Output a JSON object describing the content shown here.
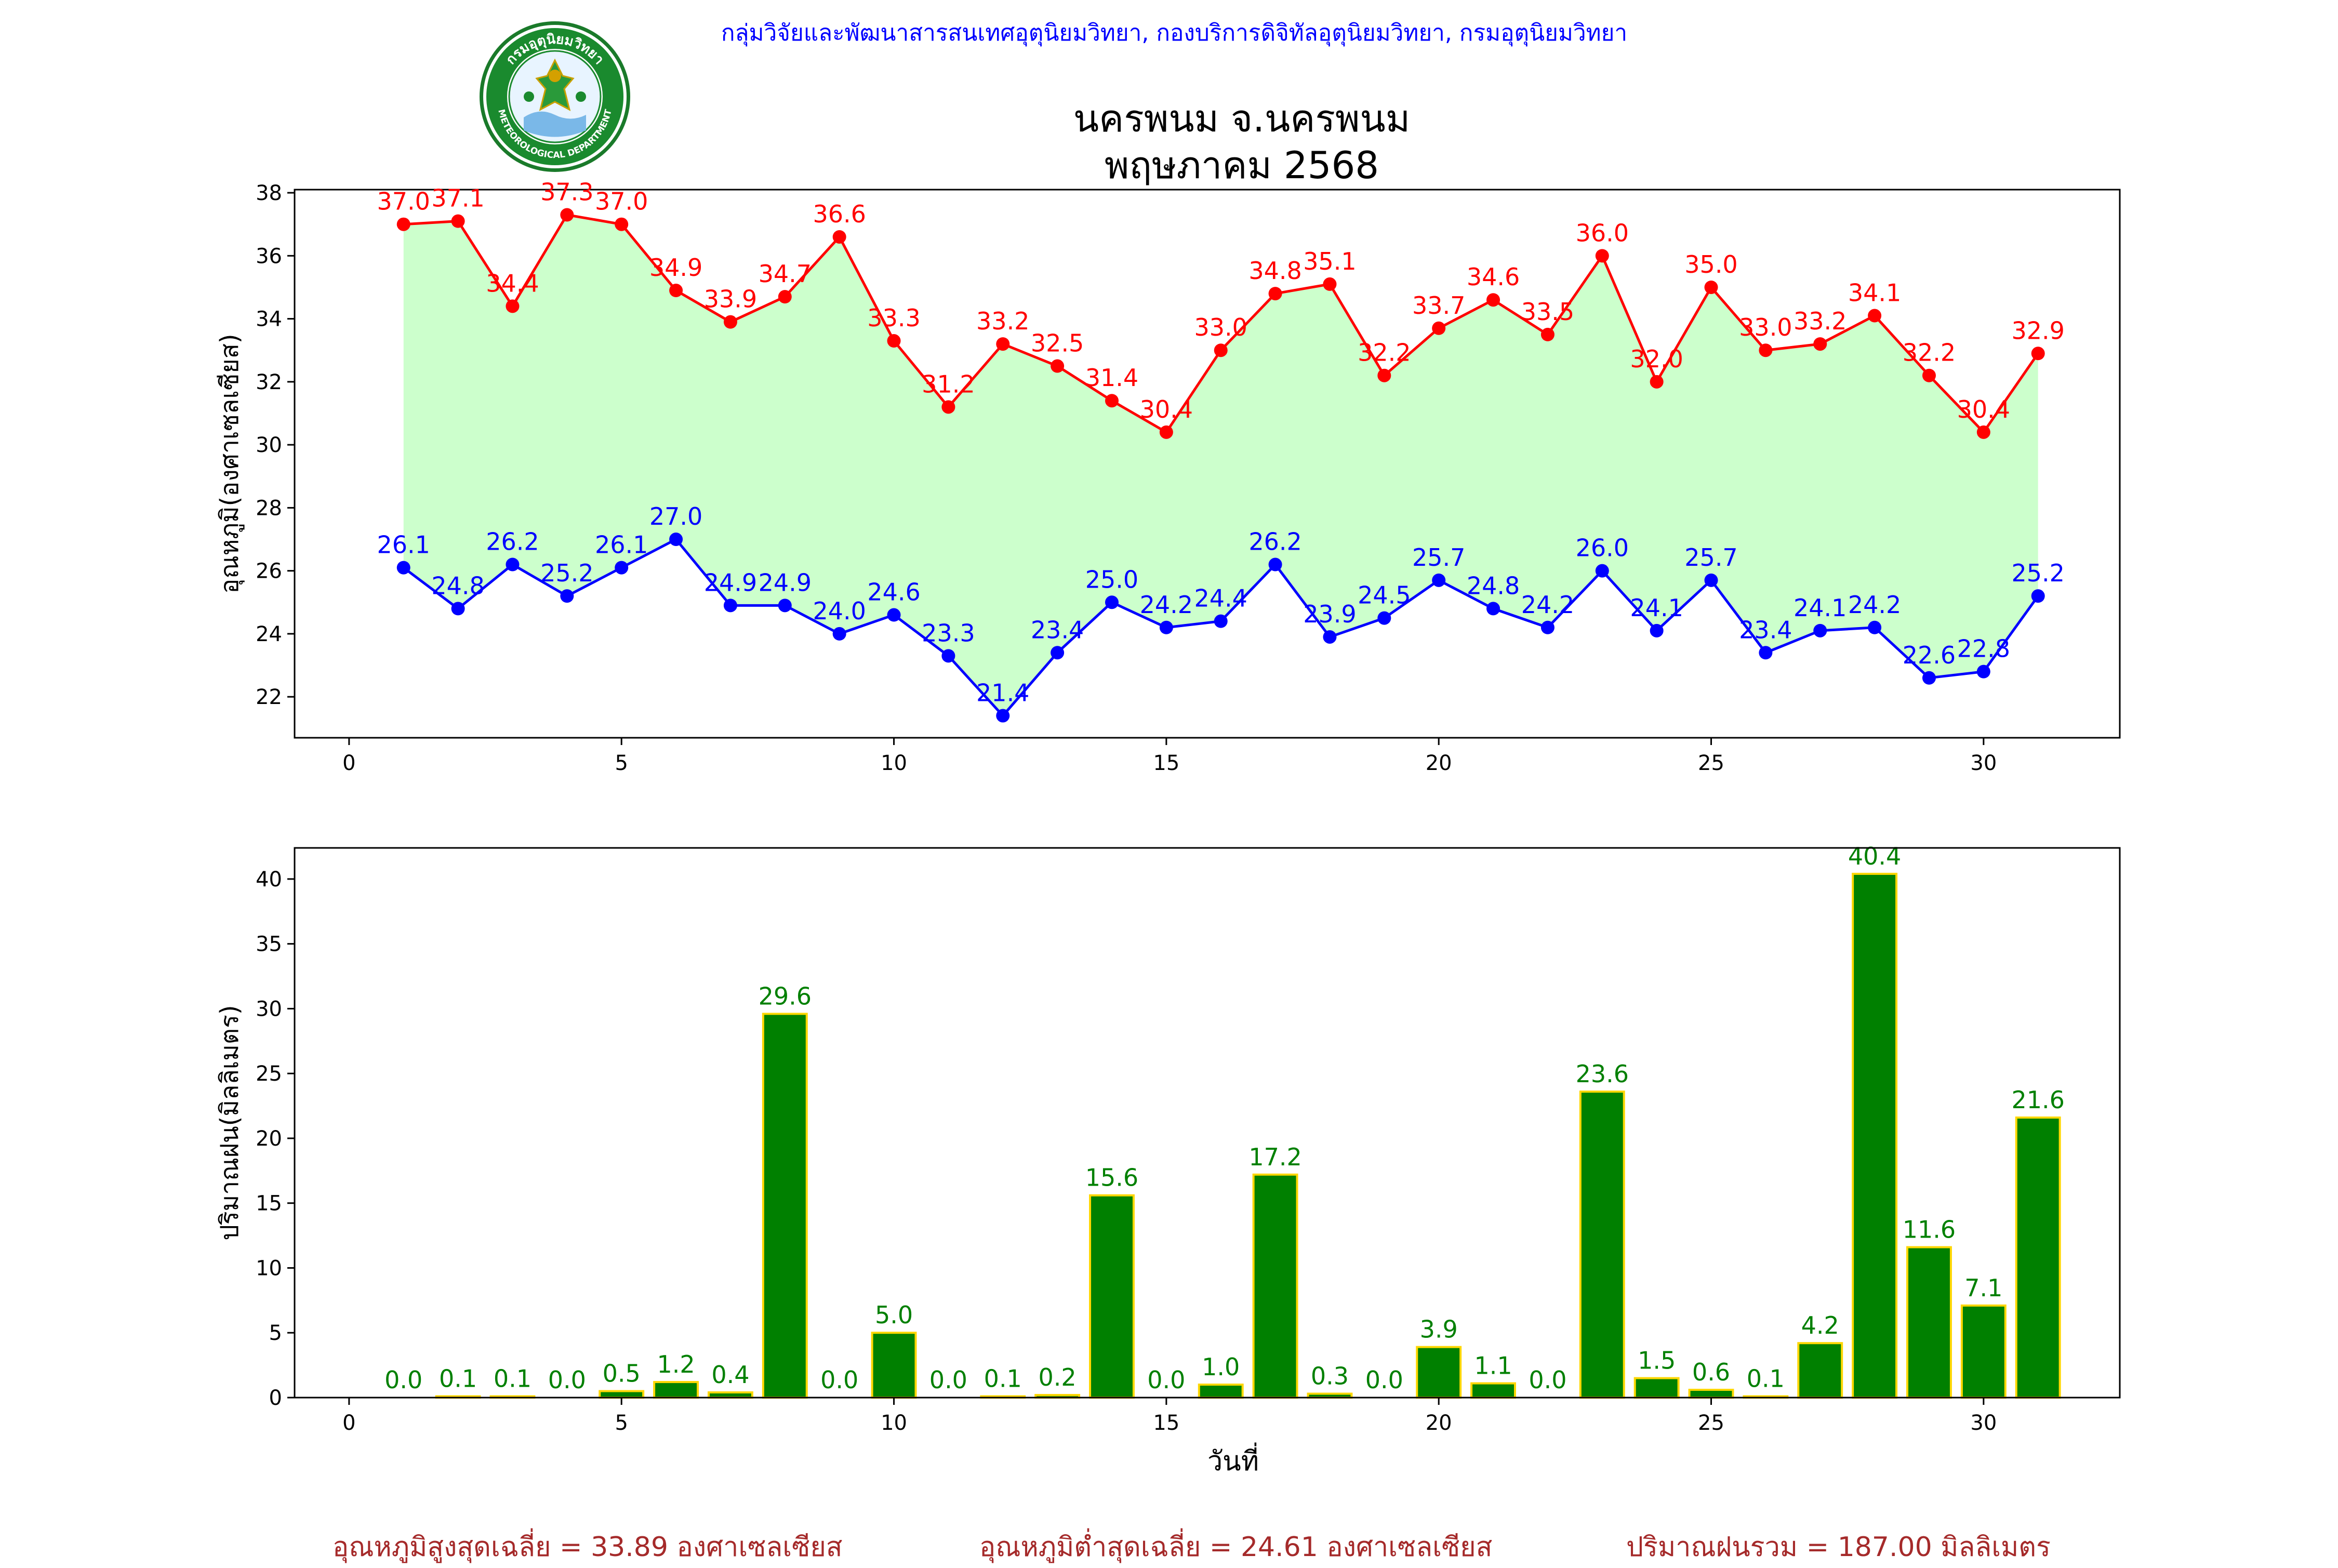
{
  "header": {
    "org": "กลุ่มวิจัยและพัฒนาสารสนเทศอุตุนิยมวิทยา, กองบริการดิจิทัลอุตุนิยมวิทยา, กรมอุตุนิยมวิทยา",
    "station": "นครพนม จ.นครพนม",
    "period": "พฤษภาคม 2568",
    "logo": {
      "top_text": "กรมอุตุนิยมวิทยา",
      "bottom_text": "METEOROLOGICAL DEPARTMENT"
    }
  },
  "colors": {
    "max": "#ff0000",
    "min": "#0000ff",
    "fill": "#ccffcc",
    "bar": "#008000",
    "bar_edge": "#ffd700",
    "footer": "#a52a2a",
    "org": "#0000ff"
  },
  "chart_data": [
    {
      "type": "line",
      "ylabel": "อุณหภูมิ(องศาเซลเซียส)",
      "xlim": [
        -1,
        32.5
      ],
      "ylim": [
        20.7,
        38.1
      ],
      "xticks": [
        0,
        5,
        10,
        15,
        20,
        25,
        30
      ],
      "yticks": [
        22,
        24,
        26,
        28,
        30,
        32,
        34,
        36,
        38
      ],
      "x": [
        1,
        2,
        3,
        4,
        5,
        6,
        7,
        8,
        9,
        10,
        11,
        12,
        13,
        14,
        15,
        16,
        17,
        18,
        19,
        20,
        21,
        22,
        23,
        24,
        25,
        26,
        27,
        28,
        29,
        30,
        31
      ],
      "series": [
        {
          "values": [
            37.0,
            37.1,
            34.4,
            37.3,
            37.0,
            34.9,
            33.9,
            34.7,
            36.6,
            33.3,
            31.2,
            33.2,
            32.5,
            31.4,
            30.4,
            33.0,
            34.8,
            35.1,
            32.2,
            33.7,
            34.6,
            33.5,
            36.0,
            32.0,
            35.0,
            33.0,
            33.2,
            34.1,
            32.2,
            30.4,
            32.9
          ]
        },
        {
          "values": [
            26.1,
            24.8,
            26.2,
            25.2,
            26.1,
            27.0,
            24.9,
            24.9,
            24.0,
            24.6,
            23.3,
            21.4,
            23.4,
            25.0,
            24.2,
            24.4,
            26.2,
            23.9,
            24.5,
            25.7,
            24.8,
            24.2,
            26.0,
            24.1,
            25.7,
            23.4,
            24.1,
            24.2,
            22.6,
            22.8,
            25.2
          ]
        }
      ]
    },
    {
      "type": "bar",
      "xlabel": "วันที่",
      "ylabel": "ปริมาณฝน(มิลลิเมตร)",
      "xlim": [
        -1,
        32.5
      ],
      "ylim": [
        0,
        42.4
      ],
      "xticks": [
        0,
        5,
        10,
        15,
        20,
        25,
        30
      ],
      "yticks": [
        0,
        5,
        10,
        15,
        20,
        25,
        30,
        35,
        40
      ],
      "x": [
        1,
        2,
        3,
        4,
        5,
        6,
        7,
        8,
        9,
        10,
        11,
        12,
        13,
        14,
        15,
        16,
        17,
        18,
        19,
        20,
        21,
        22,
        23,
        24,
        25,
        26,
        27,
        28,
        29,
        30,
        31
      ],
      "values": [
        0.0,
        0.1,
        0.1,
        0.0,
        0.5,
        1.2,
        0.4,
        29.6,
        0.0,
        5.0,
        0.0,
        0.1,
        0.2,
        15.6,
        0.0,
        1.0,
        17.2,
        0.3,
        0.0,
        3.9,
        1.1,
        0.0,
        23.6,
        1.5,
        0.6,
        0.1,
        4.2,
        40.4,
        11.6,
        7.1,
        21.6
      ]
    }
  ],
  "footer": {
    "avg_max": "อุณหภูมิสูงสุดเฉลี่ย = 33.89 องศาเซลเซียส",
    "avg_min": "อุณหภูมิต่ำสุดเฉลี่ย = 24.61 องศาเซลเซียส",
    "total_rain": "ปริมาณฝนรวม = 187.00 มิลลิเมตร"
  }
}
